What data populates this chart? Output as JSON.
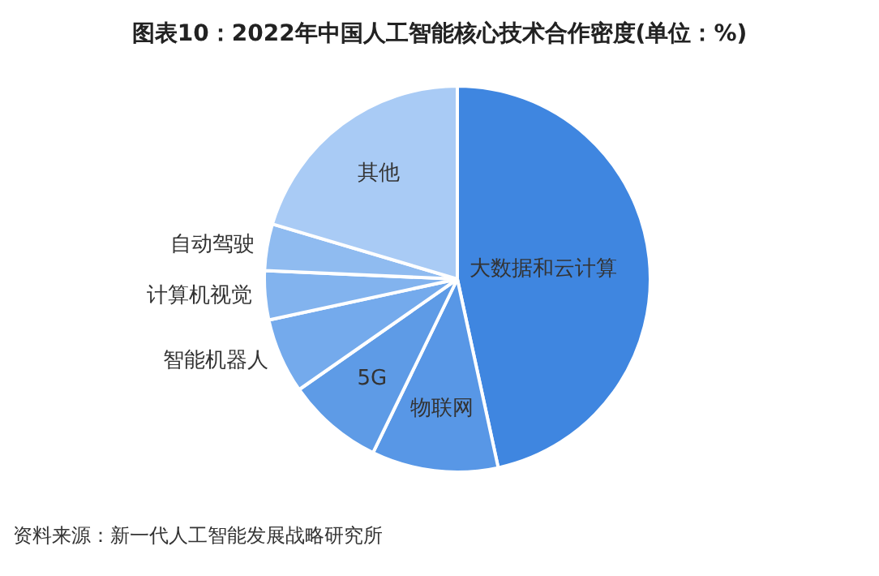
{
  "chart_data": {
    "type": "pie",
    "title": "图表10：2022年中国人工智能核心技术合作密度(单位：%)",
    "categories": [
      "大数据和云计算",
      "物联网",
      "5G",
      "智能机器人",
      "计算机视觉",
      "自动驾驶",
      "其他"
    ],
    "values": [
      46.6,
      10.6,
      8.1,
      6.3,
      4.1,
      3.9,
      20.4
    ],
    "colors": [
      "#3f86e0",
      "#5897e6",
      "#5e9be6",
      "#74aaec",
      "#82b3ee",
      "#8fbbf0",
      "#a9cbf5"
    ],
    "annotations": [
      "资料来源：新一代人工智能发展战略研究所"
    ]
  }
}
